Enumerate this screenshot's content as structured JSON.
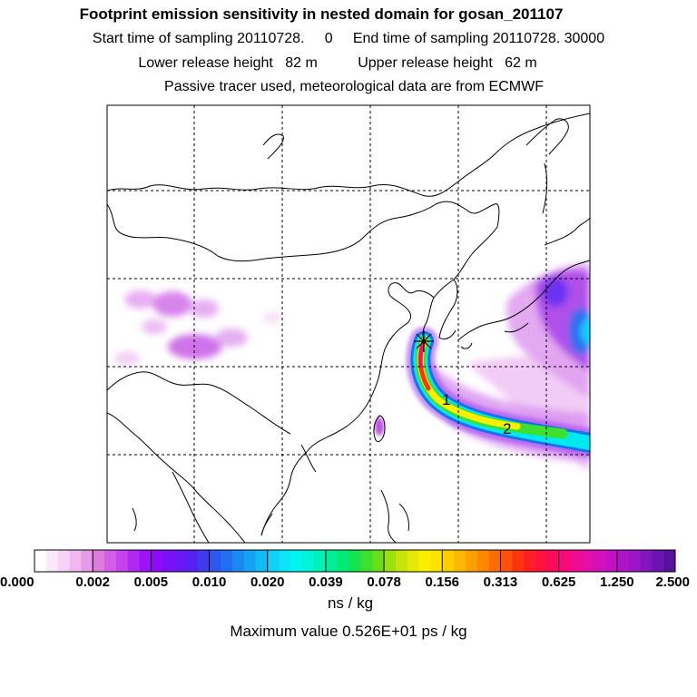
{
  "header": {
    "title": "Footprint emission sensitivity in nested domain for gosan_201107",
    "sampling_line": "Start time of sampling 20110728.     0     End time of sampling 20110728. 30000",
    "release_line": "Lower release height   82 m          Upper release height   62 m",
    "tracer_line": "Passive tracer used, meteorological data are from ECMWF"
  },
  "map": {
    "markers": [
      {
        "label": "1"
      },
      {
        "label": "2"
      }
    ]
  },
  "colorbar": {
    "tick_labels": [
      "0.000",
      "0.002",
      "0.005",
      "0.010",
      "0.020",
      "0.039",
      "0.078",
      "0.156",
      "0.313",
      "0.625",
      "1.250",
      "2.500"
    ],
    "colors": [
      "#ffffff",
      "#fbe8fb",
      "#f6d2f6",
      "#f0b8f0",
      "#e89ae8",
      "#de7cde",
      "#d35ee6",
      "#c543ee",
      "#b228f2",
      "#9f14f6",
      "#8c0cf8",
      "#7a10f8",
      "#6a18f6",
      "#5522f2",
      "#3f3cf0",
      "#2c58f0",
      "#1f70f0",
      "#1a8af2",
      "#16a2f4",
      "#12baf6",
      "#0ed2f8",
      "#0ae6f8",
      "#00f4f0",
      "#00f4d6",
      "#00f2b8",
      "#00ee96",
      "#00ea74",
      "#14e450",
      "#3ee030",
      "#6ade18",
      "#9ce00e",
      "#c6e40a",
      "#e8e806",
      "#fcee00",
      "#fce400",
      "#fcd000",
      "#fcb800",
      "#fca000",
      "#fc8800",
      "#fc6e04",
      "#fc5208",
      "#fc3410",
      "#fc2024",
      "#fc123c",
      "#fc0a5a",
      "#f80a78",
      "#f00c92",
      "#e40ea8",
      "#d410b8",
      "#c212c4",
      "#ae14c8",
      "#9a16c8",
      "#8416c0",
      "#6c14b0",
      "#56129c"
    ],
    "unit": "ns / kg"
  },
  "footer": {
    "max_value": "Maximum value  0.526E+01 ps / kg"
  }
}
